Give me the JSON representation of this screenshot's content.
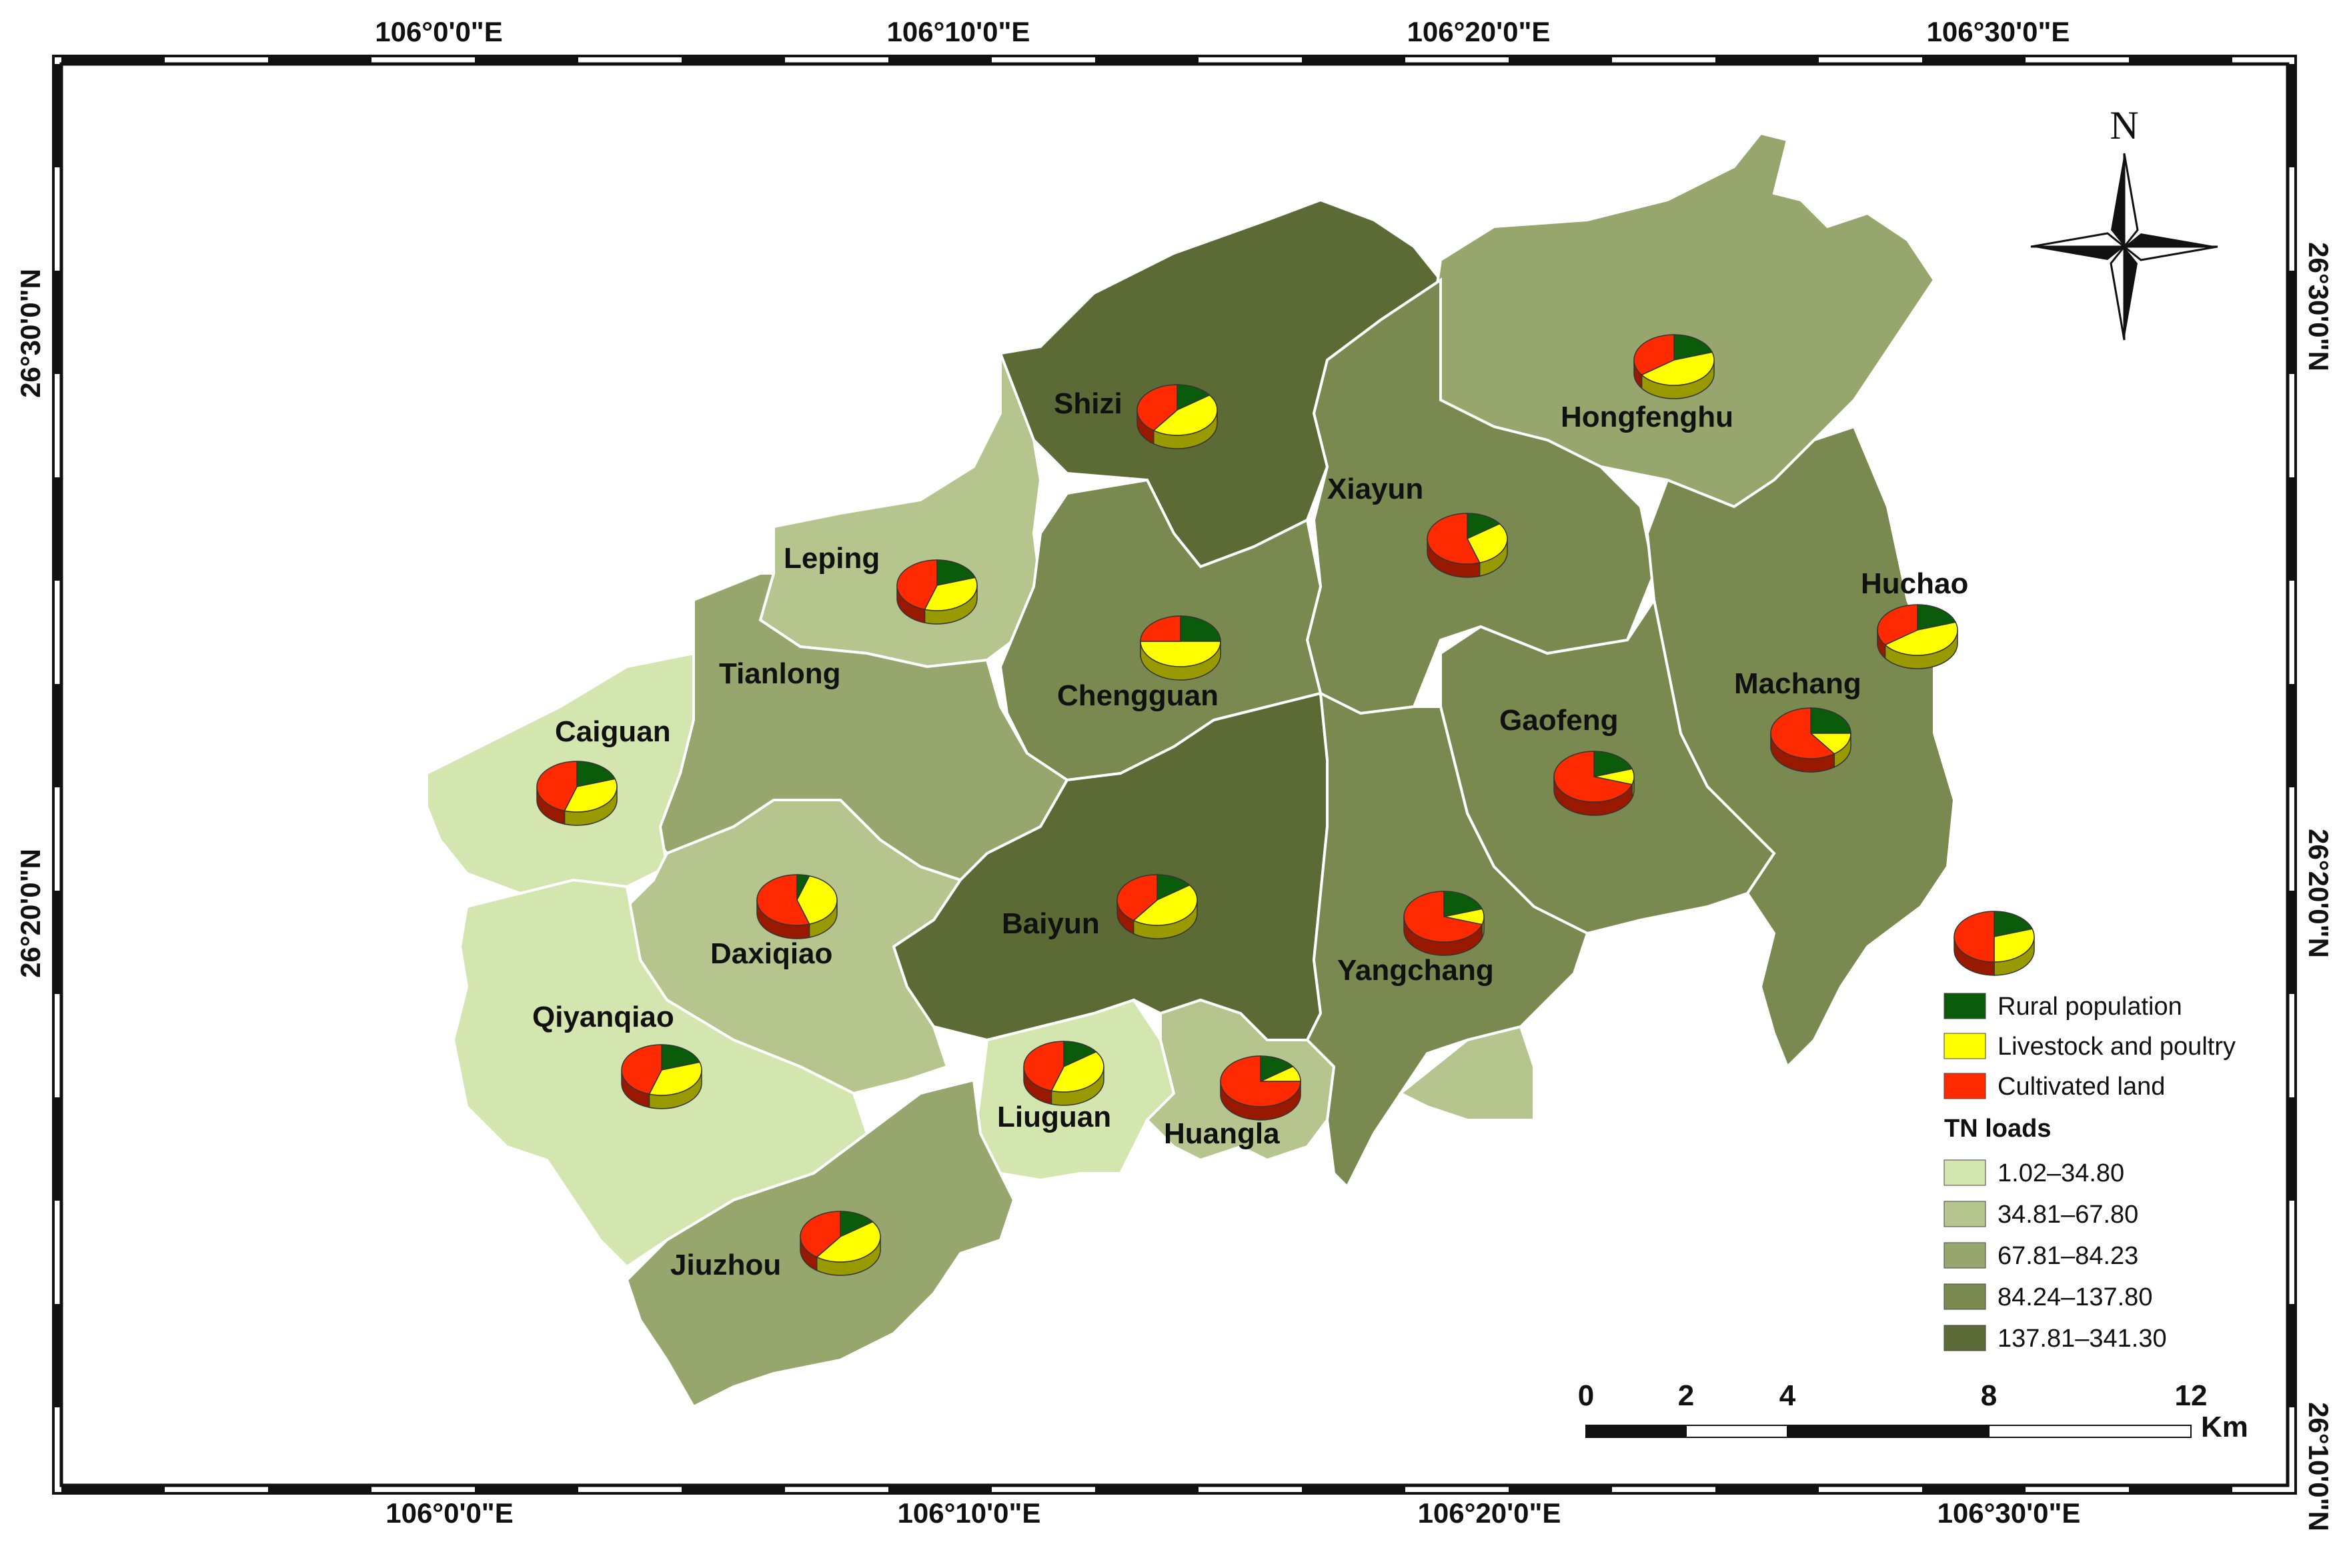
{
  "colors": {
    "rural": "#0a5c0a",
    "livestock": "#ffff00",
    "cultivated": "#ff2a00",
    "c1": "#d3e6b0",
    "c2": "#b5c58d",
    "c3": "#97a66c",
    "c4": "#7a8950",
    "c5": "#5c6a35"
  },
  "axes": {
    "top": [
      "106°0'0\"E",
      "106°10'0\"E",
      "106°20'0\"E",
      "106°30'0\"E"
    ],
    "bottom": [
      "106°0'0\"E",
      "106°10'0\"E",
      "106°20'0\"E",
      "106°30'0\"E"
    ],
    "left": [
      "26°30'0\"N",
      "26°20'0\"N"
    ],
    "right": [
      "26°30'0\"N",
      "26°20'0\"N",
      "26°10'0\"N"
    ]
  },
  "north_label": "N",
  "towns": [
    {
      "name": "Shizi",
      "shares": [
        0.15,
        0.45,
        0.4
      ]
    },
    {
      "name": "Hongfenghu",
      "shares": [
        0.2,
        0.45,
        0.35
      ]
    },
    {
      "name": "Xiayun",
      "shares": [
        0.15,
        0.3,
        0.55
      ]
    },
    {
      "name": "Leping",
      "shares": [
        0.2,
        0.35,
        0.45
      ]
    },
    {
      "name": "Huchao",
      "shares": [
        0.2,
        0.45,
        0.35
      ]
    },
    {
      "name": "Tianlong",
      "shares": []
    },
    {
      "name": "Chengguan",
      "shares": [
        0.25,
        0.5,
        0.25
      ]
    },
    {
      "name": "Machang",
      "shares": [
        0.25,
        0.15,
        0.6
      ]
    },
    {
      "name": "Caiguan",
      "shares": [
        0.2,
        0.35,
        0.45
      ]
    },
    {
      "name": "Gaofeng",
      "shares": [
        0.2,
        0.1,
        0.7
      ]
    },
    {
      "name": "Daxiqiao",
      "shares": [
        0.05,
        0.4,
        0.55
      ]
    },
    {
      "name": "Baiyun",
      "shares": [
        0.15,
        0.45,
        0.4
      ]
    },
    {
      "name": "Yangchang",
      "shares": [
        0.2,
        0.1,
        0.7
      ]
    },
    {
      "name": "Qiyanqiao",
      "shares": [
        0.2,
        0.35,
        0.45
      ]
    },
    {
      "name": "Liuguan",
      "shares": [
        0.15,
        0.4,
        0.45
      ]
    },
    {
      "name": "Huangla",
      "shares": [
        0.15,
        0.1,
        0.75
      ]
    },
    {
      "name": "Jiuzhou",
      "shares": [
        0.15,
        0.45,
        0.4
      ]
    },
    {
      "name": "",
      "shares": [
        0.2,
        0.3,
        0.5
      ]
    }
  ],
  "legend": {
    "sources": [
      {
        "label": "Rural population",
        "color": "#0a5c0a"
      },
      {
        "label": "Livestock and poultry",
        "color": "#ffff00"
      },
      {
        "label": "Cultivated land",
        "color": "#ff2a00"
      }
    ],
    "title": "TN loads",
    "classes": [
      {
        "label": "1.02–34.80",
        "color": "#d3e6b0"
      },
      {
        "label": "34.81–67.80",
        "color": "#b5c58d"
      },
      {
        "label": "67.81–84.23",
        "color": "#97a66c"
      },
      {
        "label": "84.24–137.80",
        "color": "#7a8950"
      },
      {
        "label": "137.81–341.30",
        "color": "#5c6a35"
      }
    ]
  },
  "scalebar": {
    "ticks": [
      "0",
      "2",
      "4",
      "8",
      "12"
    ],
    "unit": "Km"
  }
}
